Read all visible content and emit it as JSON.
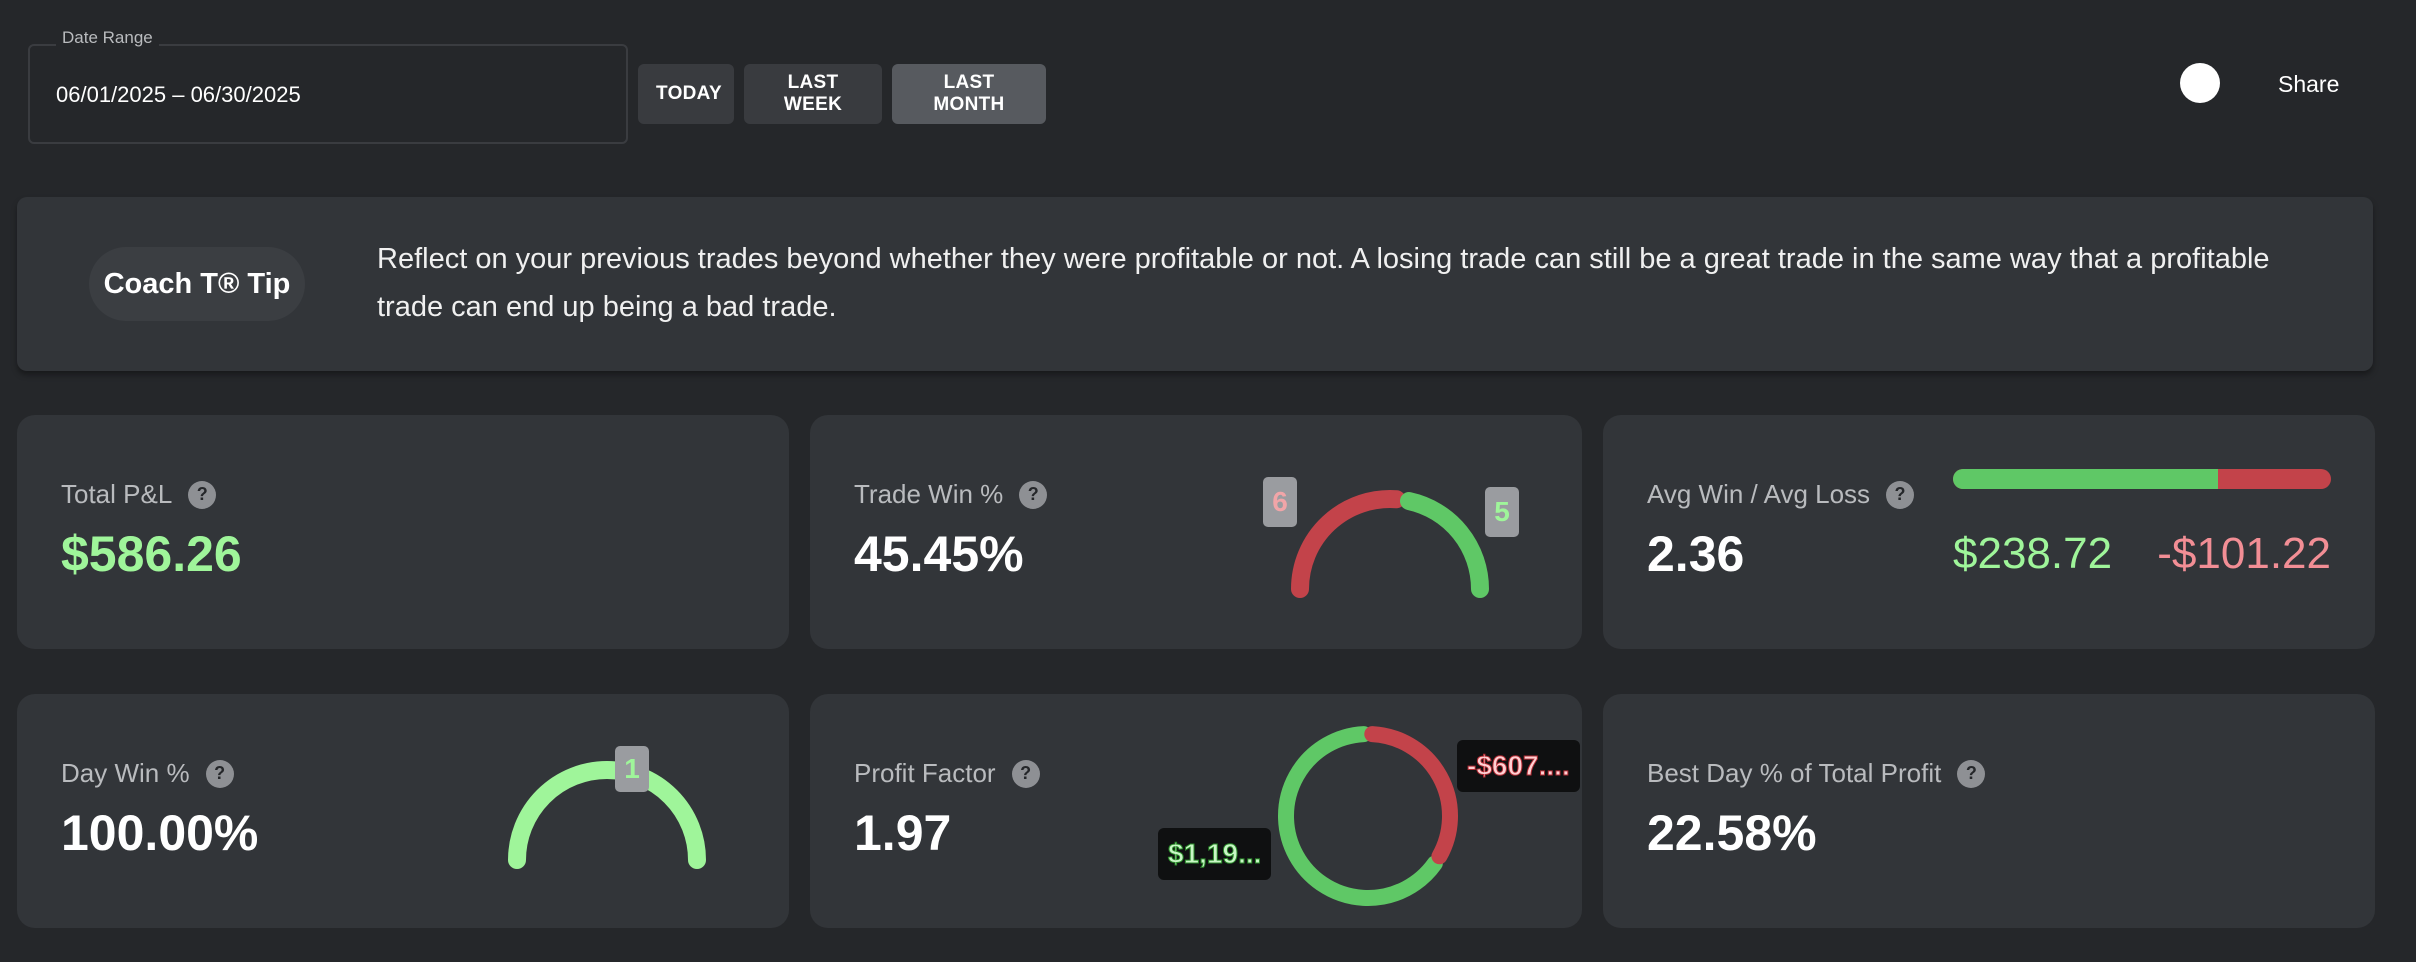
{
  "toolbar": {
    "date_range_label": "Date Range",
    "date_range_value": "06/01/2025 – 06/30/2025",
    "buttons": [
      {
        "label": "TODAY",
        "active": false
      },
      {
        "label": "LAST WEEK",
        "active": false
      },
      {
        "label": "LAST MONTH",
        "active": true
      }
    ],
    "share_label": "Share"
  },
  "tip": {
    "badge": "Coach T® Tip",
    "text": "Reflect on your previous trades beyond whether they were profitable or not. A losing trade can still be a great trade in the same way that a profitable trade can end up being a bad trade."
  },
  "cards": {
    "total_pnl": {
      "label": "Total P&L",
      "value": "$586.26"
    },
    "trade_win": {
      "label": "Trade Win %",
      "value": "45.45%",
      "losses": "6",
      "wins": "5",
      "win_fraction": 0.4545
    },
    "avg_win_loss": {
      "label": "Avg Win / Avg Loss",
      "value": "2.36",
      "avg_win": "$238.72",
      "avg_loss": "-$101.22",
      "win_fraction": 0.7
    },
    "day_win": {
      "label": "Day Win %",
      "value": "100.00%",
      "wins": "1",
      "win_fraction": 1.0
    },
    "profit_factor": {
      "label": "Profit Factor",
      "value": "1.97",
      "gross_profit": "$1,19...",
      "gross_loss": "-$607....",
      "profit_fraction": 0.66
    },
    "best_day": {
      "label": "Best Day % of Total Profit",
      "value": "22.58%"
    }
  },
  "colors": {
    "green": "#5fc866",
    "light_green": "#9ff59a",
    "red": "#c3434a",
    "pink": "#f28e95"
  }
}
